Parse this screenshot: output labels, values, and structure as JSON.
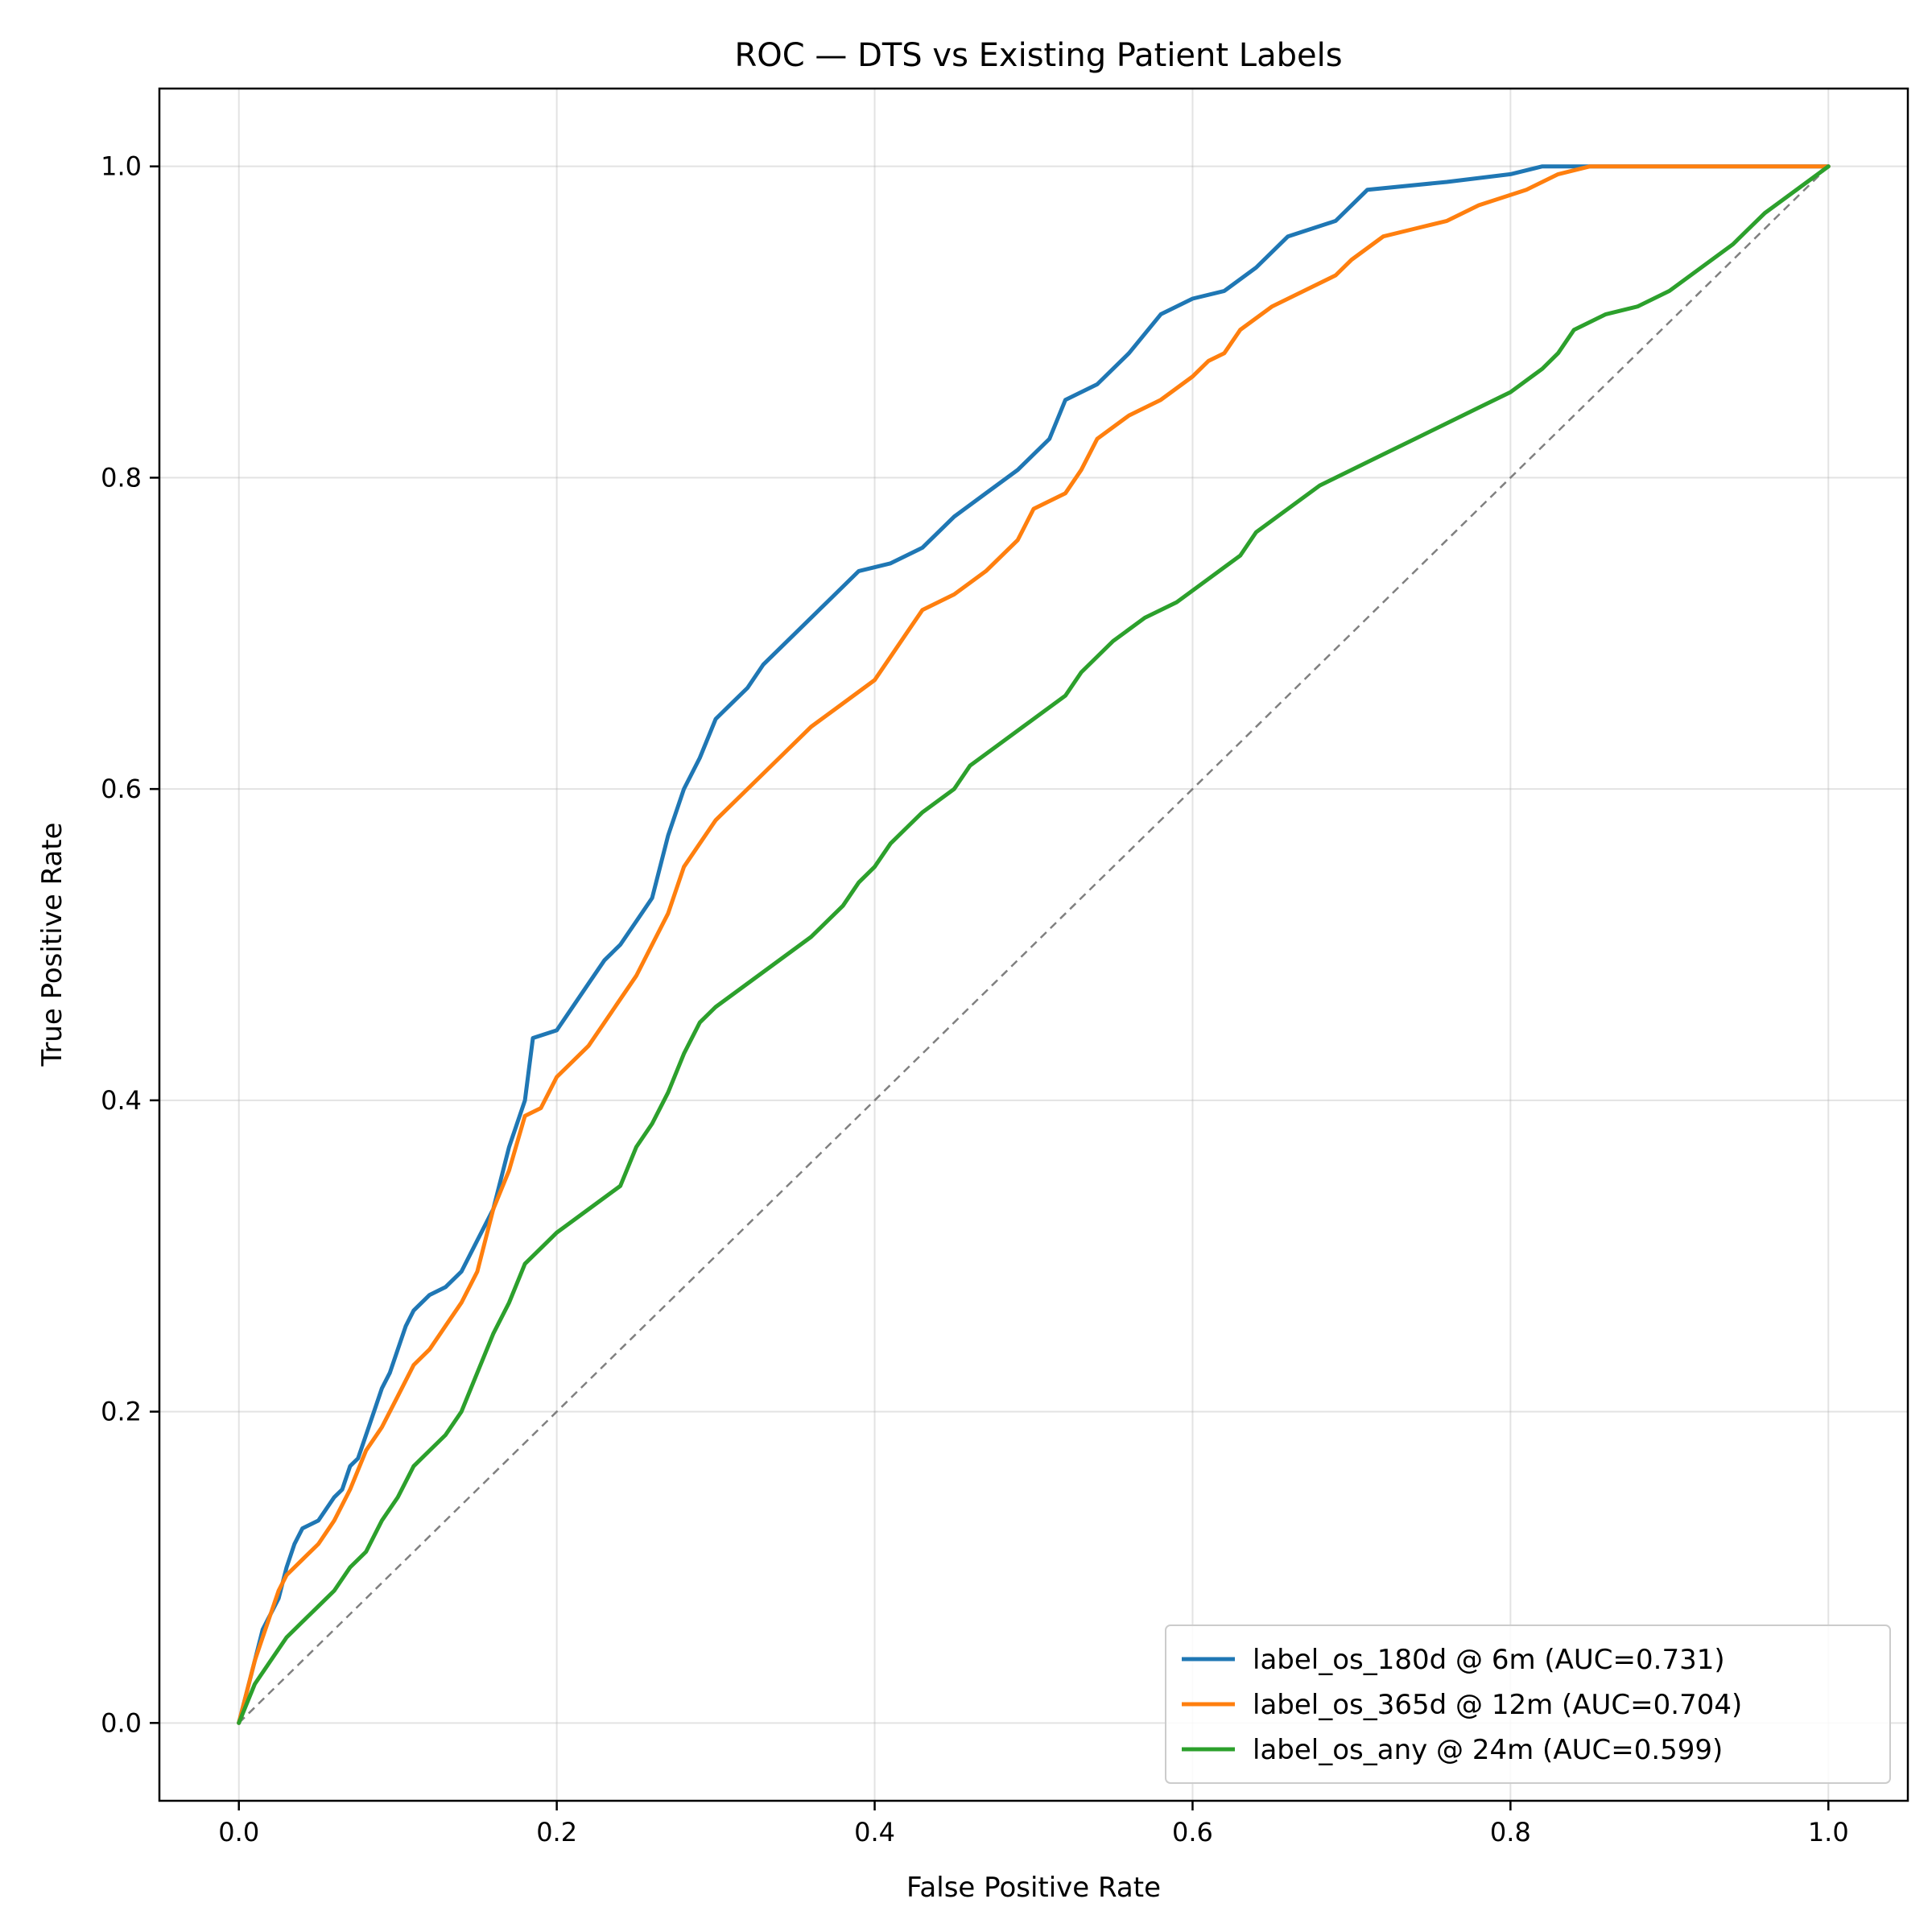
{
  "chart_data": {
    "type": "line",
    "title": "ROC — DTS vs Existing Patient Labels",
    "xlabel": "False Positive Rate",
    "ylabel": "True Positive Rate",
    "xlim": [
      -0.05,
      1.05
    ],
    "ylim": [
      -0.05,
      1.05
    ],
    "x_ticks": [
      "0.0",
      "0.2",
      "0.4",
      "0.6",
      "0.8",
      "1.0"
    ],
    "y_ticks": [
      "0.0",
      "0.2",
      "0.4",
      "0.6",
      "0.8",
      "1.0"
    ],
    "grid": true,
    "legend_position": "bottom-right",
    "reference_line": {
      "x": [
        0,
        1
      ],
      "y": [
        0,
        1
      ],
      "color": "#808080",
      "style": "dashed"
    },
    "series": [
      {
        "name": "label_os_180d @ 6m (AUC=0.731)",
        "color": "#1f77b4",
        "points": [
          [
            0,
            0
          ],
          [
            0.005,
            0.02
          ],
          [
            0.01,
            0.04
          ],
          [
            0.015,
            0.06
          ],
          [
            0.02,
            0.07
          ],
          [
            0.025,
            0.08
          ],
          [
            0.03,
            0.1
          ],
          [
            0.035,
            0.115
          ],
          [
            0.04,
            0.125
          ],
          [
            0.05,
            0.13
          ],
          [
            0.06,
            0.145
          ],
          [
            0.065,
            0.15
          ],
          [
            0.07,
            0.165
          ],
          [
            0.075,
            0.17
          ],
          [
            0.08,
            0.185
          ],
          [
            0.085,
            0.2
          ],
          [
            0.09,
            0.215
          ],
          [
            0.095,
            0.225
          ],
          [
            0.1,
            0.24
          ],
          [
            0.105,
            0.255
          ],
          [
            0.11,
            0.265
          ],
          [
            0.12,
            0.275
          ],
          [
            0.13,
            0.28
          ],
          [
            0.14,
            0.29
          ],
          [
            0.15,
            0.31
          ],
          [
            0.16,
            0.33
          ],
          [
            0.17,
            0.37
          ],
          [
            0.18,
            0.4
          ],
          [
            0.185,
            0.44
          ],
          [
            0.2,
            0.445
          ],
          [
            0.21,
            0.46
          ],
          [
            0.22,
            0.475
          ],
          [
            0.23,
            0.49
          ],
          [
            0.24,
            0.5
          ],
          [
            0.25,
            0.515
          ],
          [
            0.26,
            0.53
          ],
          [
            0.27,
            0.57
          ],
          [
            0.28,
            0.6
          ],
          [
            0.29,
            0.62
          ],
          [
            0.3,
            0.645
          ],
          [
            0.31,
            0.655
          ],
          [
            0.32,
            0.665
          ],
          [
            0.33,
            0.68
          ],
          [
            0.35,
            0.7
          ],
          [
            0.37,
            0.72
          ],
          [
            0.39,
            0.74
          ],
          [
            0.41,
            0.745
          ],
          [
            0.43,
            0.755
          ],
          [
            0.45,
            0.775
          ],
          [
            0.47,
            0.79
          ],
          [
            0.49,
            0.805
          ],
          [
            0.51,
            0.825
          ],
          [
            0.52,
            0.85
          ],
          [
            0.54,
            0.86
          ],
          [
            0.56,
            0.88
          ],
          [
            0.58,
            0.905
          ],
          [
            0.6,
            0.915
          ],
          [
            0.62,
            0.92
          ],
          [
            0.64,
            0.935
          ],
          [
            0.66,
            0.955
          ],
          [
            0.69,
            0.965
          ],
          [
            0.71,
            0.985
          ],
          [
            0.76,
            0.99
          ],
          [
            0.8,
            0.995
          ],
          [
            0.82,
            1
          ],
          [
            1,
            1
          ]
        ]
      },
      {
        "name": "label_os_365d @ 12m (AUC=0.704)",
        "color": "#ff7f0e",
        "points": [
          [
            0,
            0
          ],
          [
            0.005,
            0.02
          ],
          [
            0.01,
            0.04
          ],
          [
            0.015,
            0.055
          ],
          [
            0.02,
            0.07
          ],
          [
            0.025,
            0.085
          ],
          [
            0.03,
            0.095
          ],
          [
            0.04,
            0.105
          ],
          [
            0.05,
            0.115
          ],
          [
            0.06,
            0.13
          ],
          [
            0.07,
            0.15
          ],
          [
            0.08,
            0.175
          ],
          [
            0.09,
            0.19
          ],
          [
            0.1,
            0.21
          ],
          [
            0.11,
            0.23
          ],
          [
            0.12,
            0.24
          ],
          [
            0.13,
            0.255
          ],
          [
            0.14,
            0.27
          ],
          [
            0.15,
            0.29
          ],
          [
            0.16,
            0.33
          ],
          [
            0.17,
            0.355
          ],
          [
            0.18,
            0.39
          ],
          [
            0.19,
            0.395
          ],
          [
            0.2,
            0.415
          ],
          [
            0.21,
            0.425
          ],
          [
            0.22,
            0.435
          ],
          [
            0.23,
            0.45
          ],
          [
            0.24,
            0.465
          ],
          [
            0.25,
            0.48
          ],
          [
            0.26,
            0.5
          ],
          [
            0.27,
            0.52
          ],
          [
            0.28,
            0.55
          ],
          [
            0.29,
            0.565
          ],
          [
            0.3,
            0.58
          ],
          [
            0.32,
            0.6
          ],
          [
            0.34,
            0.62
          ],
          [
            0.36,
            0.64
          ],
          [
            0.38,
            0.655
          ],
          [
            0.4,
            0.67
          ],
          [
            0.41,
            0.685
          ],
          [
            0.42,
            0.7
          ],
          [
            0.43,
            0.715
          ],
          [
            0.45,
            0.725
          ],
          [
            0.47,
            0.74
          ],
          [
            0.49,
            0.76
          ],
          [
            0.5,
            0.78
          ],
          [
            0.52,
            0.79
          ],
          [
            0.53,
            0.805
          ],
          [
            0.54,
            0.825
          ],
          [
            0.56,
            0.84
          ],
          [
            0.58,
            0.85
          ],
          [
            0.6,
            0.865
          ],
          [
            0.61,
            0.875
          ],
          [
            0.62,
            0.88
          ],
          [
            0.63,
            0.895
          ],
          [
            0.65,
            0.91
          ],
          [
            0.67,
            0.92
          ],
          [
            0.69,
            0.93
          ],
          [
            0.7,
            0.94
          ],
          [
            0.72,
            0.955
          ],
          [
            0.74,
            0.96
          ],
          [
            0.76,
            0.965
          ],
          [
            0.78,
            0.975
          ],
          [
            0.81,
            0.985
          ],
          [
            0.83,
            0.995
          ],
          [
            0.85,
            1
          ],
          [
            1,
            1
          ]
        ]
      },
      {
        "name": "label_os_any @ 24m (AUC=0.599)",
        "color": "#2ca02c",
        "points": [
          [
            0,
            0
          ],
          [
            0.01,
            0.025
          ],
          [
            0.02,
            0.04
          ],
          [
            0.03,
            0.055
          ],
          [
            0.04,
            0.065
          ],
          [
            0.05,
            0.075
          ],
          [
            0.06,
            0.085
          ],
          [
            0.07,
            0.1
          ],
          [
            0.08,
            0.11
          ],
          [
            0.09,
            0.13
          ],
          [
            0.1,
            0.145
          ],
          [
            0.11,
            0.165
          ],
          [
            0.12,
            0.175
          ],
          [
            0.13,
            0.185
          ],
          [
            0.14,
            0.2
          ],
          [
            0.15,
            0.225
          ],
          [
            0.16,
            0.25
          ],
          [
            0.17,
            0.27
          ],
          [
            0.18,
            0.295
          ],
          [
            0.19,
            0.305
          ],
          [
            0.2,
            0.315
          ],
          [
            0.22,
            0.33
          ],
          [
            0.24,
            0.345
          ],
          [
            0.25,
            0.37
          ],
          [
            0.26,
            0.385
          ],
          [
            0.27,
            0.405
          ],
          [
            0.28,
            0.43
          ],
          [
            0.29,
            0.45
          ],
          [
            0.3,
            0.46
          ],
          [
            0.32,
            0.475
          ],
          [
            0.34,
            0.49
          ],
          [
            0.36,
            0.505
          ],
          [
            0.38,
            0.525
          ],
          [
            0.39,
            0.54
          ],
          [
            0.4,
            0.55
          ],
          [
            0.41,
            0.565
          ],
          [
            0.42,
            0.575
          ],
          [
            0.43,
            0.585
          ],
          [
            0.45,
            0.6
          ],
          [
            0.46,
            0.615
          ],
          [
            0.48,
            0.63
          ],
          [
            0.5,
            0.645
          ],
          [
            0.52,
            0.66
          ],
          [
            0.53,
            0.675
          ],
          [
            0.55,
            0.695
          ],
          [
            0.57,
            0.71
          ],
          [
            0.59,
            0.72
          ],
          [
            0.61,
            0.735
          ],
          [
            0.63,
            0.75
          ],
          [
            0.64,
            0.765
          ],
          [
            0.66,
            0.78
          ],
          [
            0.68,
            0.795
          ],
          [
            0.7,
            0.805
          ],
          [
            0.72,
            0.815
          ],
          [
            0.74,
            0.825
          ],
          [
            0.76,
            0.835
          ],
          [
            0.78,
            0.845
          ],
          [
            0.8,
            0.855
          ],
          [
            0.82,
            0.87
          ],
          [
            0.83,
            0.88
          ],
          [
            0.84,
            0.895
          ],
          [
            0.86,
            0.905
          ],
          [
            0.88,
            0.91
          ],
          [
            0.9,
            0.92
          ],
          [
            0.92,
            0.935
          ],
          [
            0.94,
            0.95
          ],
          [
            0.95,
            0.96
          ],
          [
            0.96,
            0.97
          ],
          [
            0.98,
            0.985
          ],
          [
            1,
            1
          ]
        ]
      }
    ]
  }
}
